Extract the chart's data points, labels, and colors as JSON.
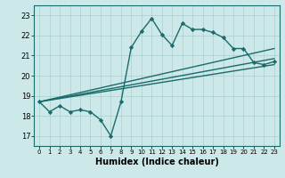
{
  "xlabel": "Humidex (Indice chaleur)",
  "ylabel": "",
  "xlim": [
    -0.5,
    23.5
  ],
  "ylim": [
    16.5,
    23.5
  ],
  "yticks": [
    17,
    18,
    19,
    20,
    21,
    22,
    23
  ],
  "xticks": [
    0,
    1,
    2,
    3,
    4,
    5,
    6,
    7,
    8,
    9,
    10,
    11,
    12,
    13,
    14,
    15,
    16,
    17,
    18,
    19,
    20,
    21,
    22,
    23
  ],
  "bg_color": "#cce8e8",
  "line_color": "#1a6b6b",
  "grid_color": "#aacfcf",
  "jagged_line": {
    "x": [
      0,
      1,
      2,
      3,
      4,
      5,
      6,
      7,
      8,
      9,
      10,
      11,
      12,
      13,
      14,
      15,
      16,
      17,
      18,
      19,
      20,
      21,
      22,
      23
    ],
    "y": [
      18.7,
      18.2,
      18.5,
      18.2,
      18.3,
      18.2,
      17.8,
      17.0,
      18.7,
      21.4,
      22.2,
      22.85,
      22.05,
      21.5,
      22.6,
      22.3,
      22.3,
      22.15,
      21.9,
      21.35,
      21.35,
      20.65,
      20.55,
      20.7
    ],
    "marker": "D",
    "markersize": 2.2,
    "linewidth": 1.0
  },
  "smooth_lines": [
    {
      "x0": 18.7,
      "x23": 21.35,
      "linewidth": 1.0
    },
    {
      "x0": 18.7,
      "x23": 20.85,
      "linewidth": 1.0
    },
    {
      "x0": 18.7,
      "x23": 20.55,
      "linewidth": 1.0
    }
  ]
}
